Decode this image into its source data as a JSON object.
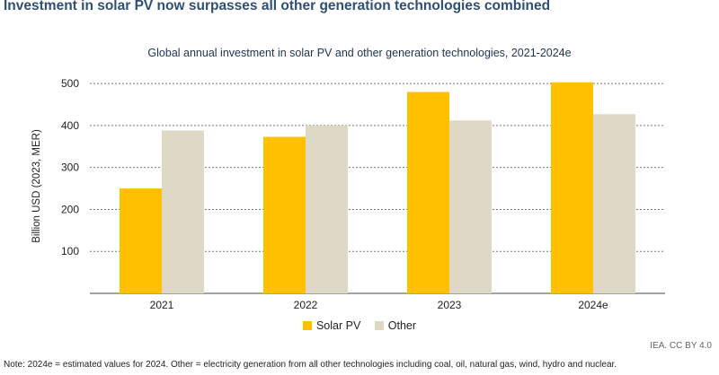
{
  "headline": "Investment in solar PV now surpasses all other generation technologies combined",
  "credit": "IEA. CC BY 4.0",
  "note": "Note: 2024e = estimated values for 2024. Other = electricity generation from all other technologies including coal, oil, natural gas, wind, hydro and nuclear.",
  "colors": {
    "solar": "#ffc000",
    "other": "#ddd9c4",
    "grid": "#777777",
    "headline": "#2f4f73"
  },
  "chart_data": {
    "type": "bar",
    "title": "Global annual investment in solar PV and other generation technologies, 2021-2024e",
    "xlabel": "",
    "ylabel": "Billion USD (2023, MER)",
    "categories": [
      "2021",
      "2022",
      "2023",
      "2024e"
    ],
    "series": [
      {
        "name": "Solar PV",
        "color": "#ffc000",
        "values": [
          250,
          373,
          480,
          503
        ]
      },
      {
        "name": "Other",
        "color": "#ddd9c4",
        "values": [
          388,
          400,
          412,
          427
        ]
      }
    ],
    "ylim": [
      0,
      500
    ],
    "yticks": [
      100,
      200,
      300,
      400,
      500
    ],
    "grid": true,
    "legend": "bottom-center"
  }
}
